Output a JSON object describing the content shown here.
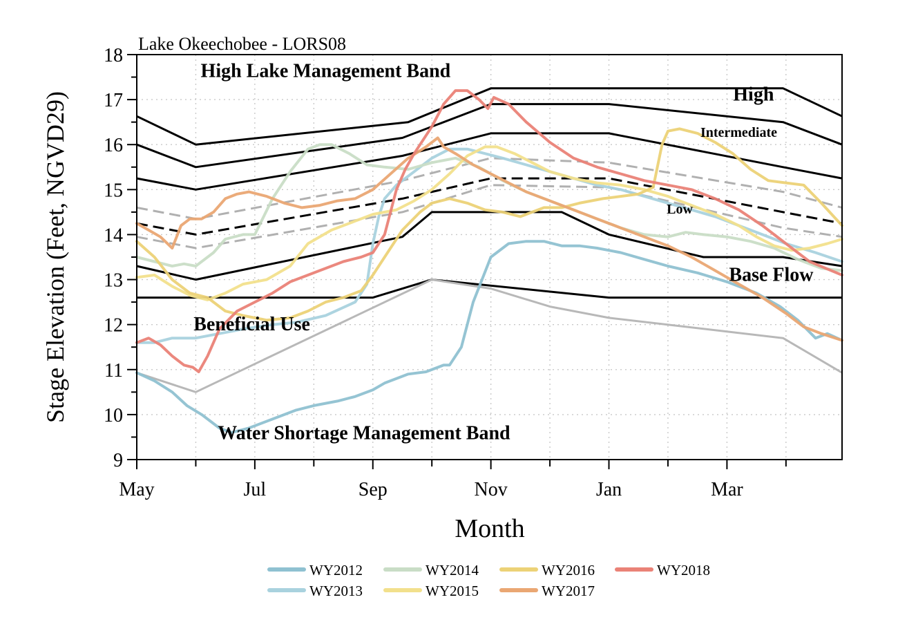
{
  "chart_data": {
    "type": "line",
    "title": "Lake Okeechobee - LORS08",
    "xlabel": "Month",
    "ylabel": "Stage Elevation (Feet, NGVD29)",
    "x_ticks": [
      "May",
      "Jul",
      "Sep",
      "Nov",
      "Jan",
      "Mar"
    ],
    "x_tick_months": [
      0,
      2,
      4,
      6,
      8,
      10
    ],
    "xlim": [
      0,
      11.95
    ],
    "ylim": [
      9,
      18
    ],
    "y_ticks": [
      9,
      10,
      11,
      12,
      13,
      14,
      15,
      16,
      17,
      18
    ],
    "grid": true,
    "legend_position": "bottom-center",
    "band_labels": [
      {
        "text": "High Lake Management Band",
        "x": 3.2,
        "y": 17.5,
        "size": "large"
      },
      {
        "text": "High",
        "x": 10.45,
        "y": 16.98,
        "size": "large"
      },
      {
        "text": "Intermediate",
        "x": 10.2,
        "y": 16.17,
        "size": "small"
      },
      {
        "text": "Low",
        "x": 9.2,
        "y": 14.47,
        "size": "small"
      },
      {
        "text": "Base Flow",
        "x": 10.75,
        "y": 12.97,
        "size": "large"
      },
      {
        "text": "Beneficial Use",
        "x": 1.95,
        "y": 11.87,
        "size": "large"
      },
      {
        "text": "Water Shortage Management Band",
        "x": 3.85,
        "y": 9.45,
        "size": "large"
      }
    ],
    "reference_lines": [
      {
        "name": "",
        "style": "solid",
        "color": "#000000",
        "x": [
          0,
          1,
          4.6,
          6,
          8,
          10.95,
          11.95
        ],
        "y": [
          16.63,
          16.0,
          16.5,
          17.25,
          17.25,
          17.25,
          16.63
        ]
      },
      {
        "name": "",
        "style": "solid",
        "color": "#000000",
        "x": [
          0,
          1,
          4.5,
          6,
          8,
          10.95,
          11.95
        ],
        "y": [
          16.0,
          15.5,
          16.15,
          16.9,
          16.9,
          16.5,
          16.0
        ]
      },
      {
        "name": "",
        "style": "solid",
        "color": "#000000",
        "x": [
          0,
          1,
          4.5,
          6,
          8,
          10.95,
          11.95
        ],
        "y": [
          15.25,
          15.0,
          15.75,
          16.25,
          16.25,
          15.5,
          15.25
        ]
      },
      {
        "name": "",
        "style": "dashed",
        "color": "#000000",
        "x": [
          0,
          1,
          4.5,
          6,
          8,
          10.95,
          11.95
        ],
        "y": [
          14.25,
          14.0,
          14.8,
          15.25,
          15.25,
          14.5,
          14.25
        ]
      },
      {
        "name": "",
        "style": "dashed",
        "color": "#b0b0b0",
        "x": [
          0,
          1,
          4.5,
          6,
          8,
          10.95,
          11.95
        ],
        "y": [
          14.6,
          14.35,
          15.2,
          15.7,
          15.6,
          14.95,
          14.6
        ]
      },
      {
        "name": "",
        "style": "dashed",
        "color": "#b0b0b0",
        "x": [
          0,
          1,
          4.5,
          6,
          8,
          10.95,
          11.95
        ],
        "y": [
          13.95,
          13.7,
          14.5,
          15.1,
          15.05,
          14.15,
          13.95
        ]
      },
      {
        "name": "",
        "style": "solid",
        "color": "#000000",
        "x": [
          0,
          1,
          4.5,
          5,
          6,
          7.2,
          8,
          9.6,
          10.95,
          11.95
        ],
        "y": [
          13.3,
          13.0,
          13.95,
          14.5,
          14.5,
          14.5,
          14.0,
          13.5,
          13.5,
          13.3
        ]
      },
      {
        "name": "",
        "style": "solid",
        "color": "#000000",
        "x": [
          0,
          4,
          5,
          8,
          11.95
        ],
        "y": [
          12.6,
          12.6,
          13.0,
          12.6,
          12.6
        ]
      },
      {
        "name": "",
        "style": "solid",
        "color": "#b8b8b8",
        "x": [
          0,
          1,
          5,
          6,
          7,
          8,
          10.95,
          11.95
        ],
        "y": [
          10.93,
          10.5,
          13.0,
          12.8,
          12.4,
          12.15,
          11.7,
          10.93
        ]
      }
    ],
    "series": [
      {
        "name": "WY2012",
        "color": "#8fc1d1",
        "x": [
          0,
          0.3,
          0.6,
          0.85,
          1.1,
          1.4,
          1.6,
          1.9,
          2.3,
          2.7,
          3.0,
          3.4,
          3.7,
          4.0,
          4.2,
          4.6,
          4.9,
          5.2,
          5.3,
          5.5,
          5.7,
          6.0,
          6.3,
          6.6,
          6.9,
          7.2,
          7.5,
          7.8,
          8.2,
          8.6,
          9.0,
          9.5,
          10.0,
          10.5,
          10.9,
          11.2,
          11.5,
          11.7,
          11.95
        ],
        "y": [
          10.93,
          10.75,
          10.5,
          10.2,
          10.0,
          9.7,
          9.6,
          9.7,
          9.9,
          10.1,
          10.2,
          10.3,
          10.4,
          10.55,
          10.7,
          10.9,
          10.95,
          11.1,
          11.1,
          11.5,
          12.5,
          13.5,
          13.8,
          13.85,
          13.85,
          13.75,
          13.75,
          13.7,
          13.6,
          13.45,
          13.3,
          13.15,
          12.95,
          12.7,
          12.4,
          12.1,
          11.7,
          11.8,
          11.65
        ]
      },
      {
        "name": "WY2013",
        "color": "#a9d2de",
        "x": [
          0,
          0.3,
          0.6,
          1.0,
          1.4,
          1.8,
          2.3,
          2.7,
          3.2,
          3.7,
          3.9,
          4.0,
          4.1,
          4.2,
          4.4,
          4.7,
          5.0,
          5.3,
          5.6,
          5.9,
          6.2,
          6.6,
          7.0,
          7.4,
          7.8,
          8.2,
          8.6,
          9.0,
          9.4,
          9.8,
          10.2,
          10.6,
          11.0,
          11.5,
          11.95
        ],
        "y": [
          11.6,
          11.6,
          11.7,
          11.7,
          11.8,
          11.9,
          12.0,
          12.05,
          12.2,
          12.5,
          12.9,
          13.8,
          14.4,
          14.8,
          15.1,
          15.4,
          15.7,
          15.9,
          15.9,
          15.8,
          15.7,
          15.55,
          15.4,
          15.25,
          15.1,
          15.0,
          14.85,
          14.7,
          14.55,
          14.4,
          14.2,
          14.0,
          13.8,
          13.6,
          13.4
        ]
      },
      {
        "name": "WY2014",
        "color": "#c9ddc6",
        "x": [
          0,
          0.3,
          0.6,
          0.8,
          1.0,
          1.3,
          1.5,
          1.8,
          2.0,
          2.3,
          2.6,
          2.9,
          3.1,
          3.3,
          3.6,
          3.9,
          4.2,
          4.6,
          5.0,
          5.4,
          5.8,
          6.2,
          6.6,
          7.0,
          7.4,
          7.8,
          8.2,
          8.6,
          9.0,
          9.3,
          9.6,
          10.0,
          10.4,
          10.8,
          11.2,
          11.6,
          11.95
        ],
        "y": [
          13.5,
          13.4,
          13.3,
          13.35,
          13.3,
          13.6,
          13.9,
          14.0,
          14.0,
          14.8,
          15.4,
          15.9,
          16.0,
          16.0,
          15.8,
          15.55,
          15.5,
          15.45,
          15.6,
          15.7,
          15.5,
          15.2,
          14.95,
          14.75,
          14.55,
          14.35,
          14.15,
          14.0,
          13.95,
          14.05,
          14.0,
          13.95,
          13.85,
          13.7,
          13.45,
          13.25,
          13.2
        ]
      },
      {
        "name": "WY2015",
        "color": "#f2e08c",
        "x": [
          0,
          0.3,
          0.6,
          0.9,
          1.2,
          1.5,
          1.8,
          2.2,
          2.6,
          2.9,
          3.3,
          3.7,
          4.0,
          4.4,
          4.7,
          5.0,
          5.3,
          5.6,
          5.9,
          6.1,
          6.4,
          6.7,
          7.0,
          7.4,
          7.8,
          8.2,
          8.6,
          9.0,
          9.4,
          9.8,
          10.2,
          10.5,
          10.8,
          11.1,
          11.4,
          11.7,
          11.95
        ],
        "y": [
          13.05,
          13.1,
          12.85,
          12.65,
          12.55,
          12.7,
          12.9,
          13.0,
          13.3,
          13.8,
          14.1,
          14.3,
          14.45,
          14.55,
          14.75,
          15.0,
          15.35,
          15.75,
          15.95,
          15.95,
          15.8,
          15.6,
          15.4,
          15.25,
          15.15,
          15.1,
          15.0,
          14.85,
          14.65,
          14.45,
          14.2,
          13.95,
          13.75,
          13.65,
          13.7,
          13.8,
          13.9
        ]
      },
      {
        "name": "WY2016",
        "color": "#ecd277",
        "x": [
          0,
          0.3,
          0.6,
          0.9,
          1.2,
          1.5,
          1.8,
          2.2,
          2.6,
          2.9,
          3.2,
          3.5,
          3.8,
          4.0,
          4.2,
          4.5,
          4.8,
          5.0,
          5.3,
          5.6,
          5.9,
          6.2,
          6.5,
          6.6,
          6.9,
          7.2,
          7.5,
          7.9,
          8.2,
          8.5,
          8.75,
          8.9,
          9.0,
          9.2,
          9.5,
          9.8,
          10.1,
          10.4,
          10.7,
          11.0,
          11.3,
          11.6,
          11.95
        ],
        "y": [
          13.85,
          13.5,
          13.0,
          12.7,
          12.6,
          12.3,
          12.2,
          12.1,
          12.15,
          12.3,
          12.5,
          12.6,
          12.75,
          13.1,
          13.5,
          14.1,
          14.5,
          14.7,
          14.8,
          14.7,
          14.55,
          14.5,
          14.4,
          14.45,
          14.6,
          14.6,
          14.7,
          14.8,
          14.85,
          14.9,
          15.05,
          16.0,
          16.3,
          16.35,
          16.25,
          16.05,
          15.8,
          15.45,
          15.2,
          15.15,
          15.1,
          14.7,
          14.2
        ]
      },
      {
        "name": "WY2017",
        "color": "#eaa773",
        "x": [
          0,
          0.2,
          0.4,
          0.6,
          0.75,
          0.9,
          1.1,
          1.3,
          1.5,
          1.7,
          1.9,
          2.2,
          2.5,
          2.8,
          3.1,
          3.4,
          3.7,
          4.0,
          4.3,
          4.6,
          4.9,
          5.1,
          5.2,
          5.4,
          5.7,
          6.0,
          6.3,
          6.6,
          7.0,
          7.4,
          7.8,
          8.2,
          8.6,
          9.0,
          9.4,
          9.8,
          10.2,
          10.6,
          11.0,
          11.3,
          11.6,
          11.95
        ],
        "y": [
          14.25,
          14.1,
          13.95,
          13.7,
          14.2,
          14.35,
          14.35,
          14.5,
          14.8,
          14.9,
          14.95,
          14.85,
          14.7,
          14.6,
          14.65,
          14.75,
          14.8,
          15.0,
          15.35,
          15.7,
          15.95,
          16.15,
          15.95,
          15.8,
          15.55,
          15.35,
          15.15,
          14.95,
          14.75,
          14.55,
          14.35,
          14.15,
          13.95,
          13.75,
          13.5,
          13.2,
          12.9,
          12.6,
          12.25,
          11.95,
          11.8,
          11.65
        ]
      },
      {
        "name": "WY2018",
        "color": "#ea8277",
        "x": [
          0,
          0.2,
          0.4,
          0.6,
          0.8,
          0.95,
          1.05,
          1.2,
          1.4,
          1.7,
          2.0,
          2.3,
          2.6,
          2.9,
          3.2,
          3.5,
          3.8,
          4.0,
          4.2,
          4.4,
          4.55,
          4.7,
          4.85,
          5.0,
          5.2,
          5.4,
          5.6,
          5.8,
          5.95,
          6.05,
          6.3,
          6.6,
          7.0,
          7.4,
          7.8,
          8.2,
          8.6,
          9.0,
          9.4,
          9.8,
          10.2,
          10.6,
          11.0,
          11.4,
          11.95
        ],
        "y": [
          11.6,
          11.7,
          11.55,
          11.3,
          11.1,
          11.05,
          10.95,
          11.3,
          11.9,
          12.3,
          12.5,
          12.7,
          12.95,
          13.1,
          13.25,
          13.4,
          13.5,
          13.6,
          14.0,
          15.0,
          15.45,
          15.8,
          16.1,
          16.4,
          16.9,
          17.2,
          17.2,
          17.0,
          16.8,
          17.05,
          16.9,
          16.5,
          16.05,
          15.7,
          15.5,
          15.35,
          15.2,
          15.1,
          15.0,
          14.8,
          14.55,
          14.2,
          13.8,
          13.4,
          13.1
        ]
      }
    ]
  }
}
